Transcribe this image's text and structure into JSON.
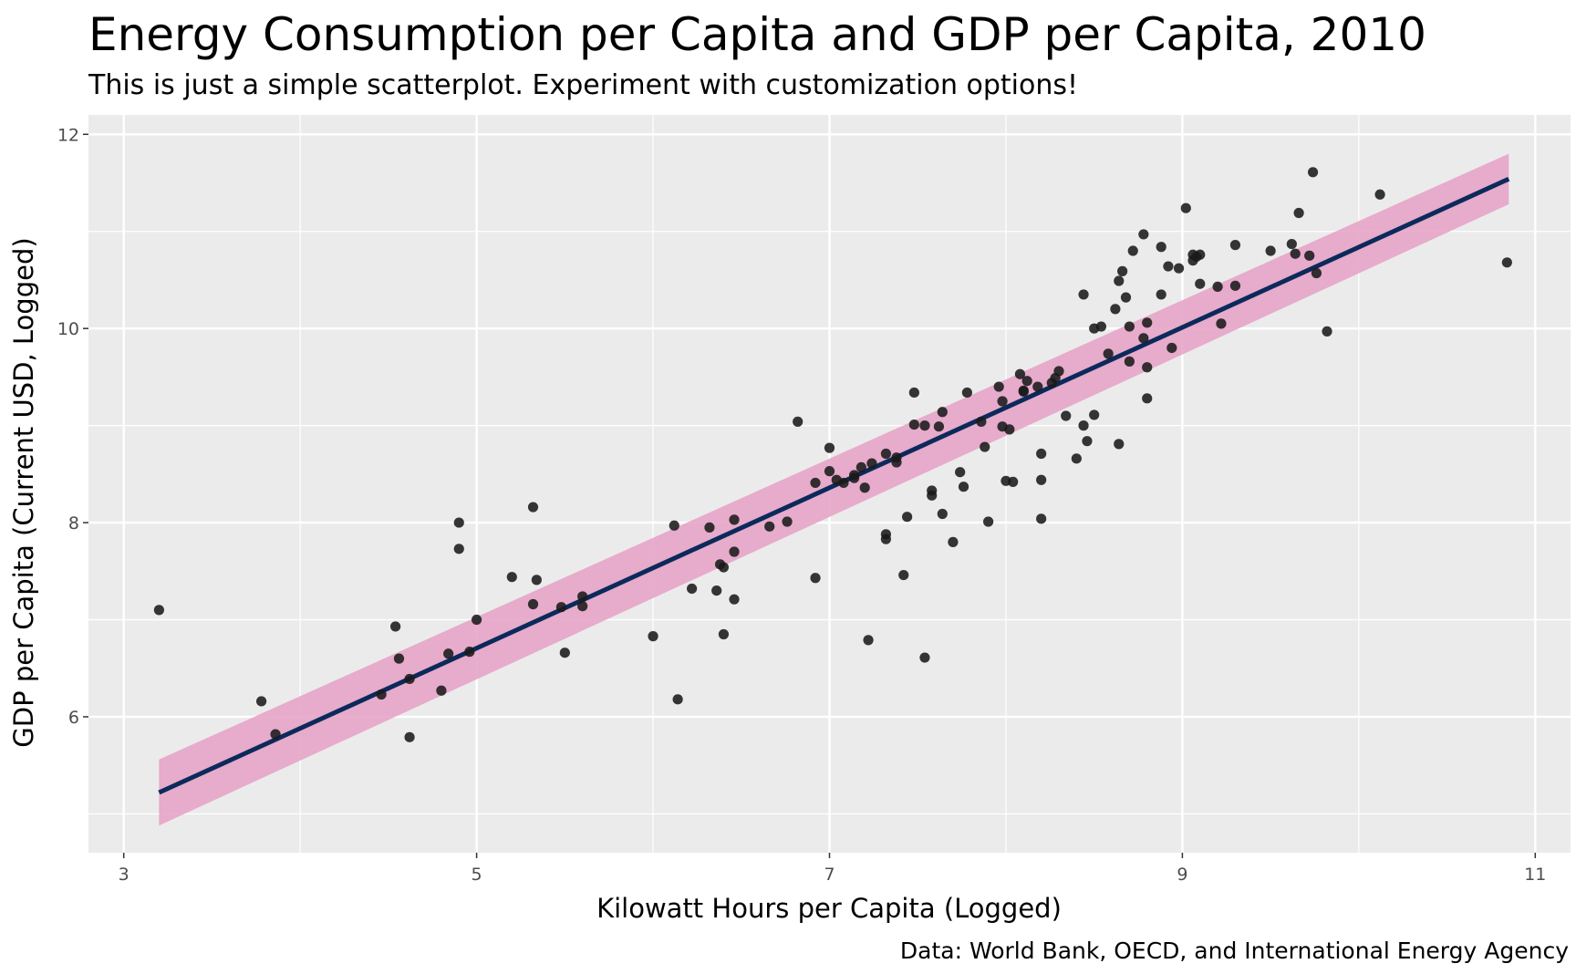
{
  "chart_data": {
    "type": "scatter",
    "title": "Energy Consumption per Capita and GDP per Capita, 2010",
    "subtitle": "This is just a simple scatterplot. Experiment with customization options!",
    "xlabel": "Kilowatt Hours per Capita (Logged)",
    "ylabel": "GDP per Capita (Current USD, Logged)",
    "caption": "Data: World Bank, OECD, and International Energy Agency",
    "xlim": [
      2.8,
      11.2
    ],
    "ylim": [
      4.6,
      12.2
    ],
    "x_ticks": [
      3,
      5,
      7,
      9,
      11
    ],
    "y_ticks": [
      6,
      8,
      10,
      12
    ],
    "grid": true,
    "colors": {
      "panel": "#ebebeb",
      "grid": "#ffffff",
      "points": "#1a1a1a",
      "fit_line": "#0b2a5b",
      "confidence_band": "#e7a4c8"
    },
    "fit": {
      "x_start": 3.2,
      "y_start": 5.22,
      "x_end": 10.85,
      "y_end": 11.54,
      "band_start": [
        4.88,
        5.56
      ],
      "band_end": [
        11.28,
        11.8
      ]
    },
    "points": [
      [
        3.2,
        7.1
      ],
      [
        3.78,
        6.16
      ],
      [
        3.86,
        5.82
      ],
      [
        4.46,
        6.23
      ],
      [
        4.54,
        6.93
      ],
      [
        4.56,
        6.6
      ],
      [
        4.62,
        6.39
      ],
      [
        4.62,
        5.79
      ],
      [
        4.8,
        6.27
      ],
      [
        4.84,
        6.65
      ],
      [
        4.9,
        7.73
      ],
      [
        4.9,
        8.0
      ],
      [
        4.96,
        6.67
      ],
      [
        5.0,
        7.0
      ],
      [
        5.2,
        7.44
      ],
      [
        5.32,
        7.16
      ],
      [
        5.32,
        8.16
      ],
      [
        5.34,
        7.41
      ],
      [
        5.48,
        7.13
      ],
      [
        5.5,
        6.66
      ],
      [
        5.6,
        7.14
      ],
      [
        5.6,
        7.24
      ],
      [
        6.0,
        6.83
      ],
      [
        6.12,
        7.97
      ],
      [
        6.14,
        6.18
      ],
      [
        6.22,
        7.32
      ],
      [
        6.32,
        7.95
      ],
      [
        6.36,
        7.3
      ],
      [
        6.38,
        7.57
      ],
      [
        6.4,
        6.85
      ],
      [
        6.4,
        7.54
      ],
      [
        6.46,
        8.03
      ],
      [
        6.46,
        7.7
      ],
      [
        6.46,
        7.21
      ],
      [
        6.66,
        7.96
      ],
      [
        6.76,
        8.01
      ],
      [
        6.82,
        9.04
      ],
      [
        6.92,
        8.41
      ],
      [
        6.92,
        7.43
      ],
      [
        7.0,
        8.77
      ],
      [
        7.0,
        8.53
      ],
      [
        7.04,
        8.44
      ],
      [
        7.08,
        8.41
      ],
      [
        7.14,
        8.49
      ],
      [
        7.14,
        8.46
      ],
      [
        7.18,
        8.57
      ],
      [
        7.2,
        8.36
      ],
      [
        7.22,
        6.79
      ],
      [
        7.24,
        8.61
      ],
      [
        7.32,
        8.71
      ],
      [
        7.32,
        7.88
      ],
      [
        7.32,
        7.83
      ],
      [
        7.38,
        8.67
      ],
      [
        7.38,
        8.62
      ],
      [
        7.42,
        7.46
      ],
      [
        7.44,
        8.06
      ],
      [
        7.48,
        9.34
      ],
      [
        7.48,
        9.01
      ],
      [
        7.54,
        6.61
      ],
      [
        7.54,
        9.0
      ],
      [
        7.58,
        8.28
      ],
      [
        7.58,
        8.33
      ],
      [
        7.62,
        8.99
      ],
      [
        7.64,
        9.14
      ],
      [
        7.64,
        8.09
      ],
      [
        7.7,
        7.8
      ],
      [
        7.74,
        8.52
      ],
      [
        7.76,
        8.37
      ],
      [
        7.78,
        9.34
      ],
      [
        7.86,
        9.04
      ],
      [
        7.88,
        8.78
      ],
      [
        7.9,
        8.01
      ],
      [
        7.96,
        9.4
      ],
      [
        7.98,
        9.25
      ],
      [
        7.98,
        8.99
      ],
      [
        8.0,
        8.43
      ],
      [
        8.02,
        8.96
      ],
      [
        8.04,
        8.42
      ],
      [
        8.08,
        9.53
      ],
      [
        8.1,
        9.36
      ],
      [
        8.1,
        9.35
      ],
      [
        8.12,
        9.46
      ],
      [
        8.18,
        9.4
      ],
      [
        8.2,
        8.71
      ],
      [
        8.2,
        8.44
      ],
      [
        8.2,
        8.04
      ],
      [
        8.26,
        9.44
      ],
      [
        8.28,
        9.49
      ],
      [
        8.3,
        9.56
      ],
      [
        8.34,
        9.1
      ],
      [
        8.4,
        8.66
      ],
      [
        8.44,
        10.35
      ],
      [
        8.44,
        9.0
      ],
      [
        8.46,
        8.84
      ],
      [
        8.5,
        9.11
      ],
      [
        8.5,
        10.0
      ],
      [
        8.54,
        10.02
      ],
      [
        8.58,
        9.74
      ],
      [
        8.62,
        10.2
      ],
      [
        8.64,
        10.49
      ],
      [
        8.64,
        8.81
      ],
      [
        8.66,
        10.59
      ],
      [
        8.68,
        10.32
      ],
      [
        8.7,
        10.02
      ],
      [
        8.7,
        9.66
      ],
      [
        8.72,
        10.8
      ],
      [
        8.78,
        10.97
      ],
      [
        8.78,
        9.9
      ],
      [
        8.8,
        9.28
      ],
      [
        8.8,
        10.06
      ],
      [
        8.8,
        9.6
      ],
      [
        8.88,
        10.35
      ],
      [
        8.88,
        10.84
      ],
      [
        8.92,
        10.64
      ],
      [
        8.94,
        9.8
      ],
      [
        8.98,
        10.62
      ],
      [
        9.02,
        11.24
      ],
      [
        9.06,
        10.76
      ],
      [
        9.06,
        10.7
      ],
      [
        9.08,
        10.74
      ],
      [
        9.1,
        10.46
      ],
      [
        9.1,
        10.76
      ],
      [
        9.2,
        10.43
      ],
      [
        9.22,
        10.05
      ],
      [
        9.3,
        10.44
      ],
      [
        9.3,
        10.86
      ],
      [
        9.5,
        10.8
      ],
      [
        9.62,
        10.87
      ],
      [
        9.64,
        10.77
      ],
      [
        9.66,
        11.19
      ],
      [
        9.72,
        10.75
      ],
      [
        9.74,
        11.61
      ],
      [
        9.76,
        10.57
      ],
      [
        9.82,
        9.97
      ],
      [
        10.12,
        11.38
      ],
      [
        10.84,
        10.68
      ]
    ]
  }
}
